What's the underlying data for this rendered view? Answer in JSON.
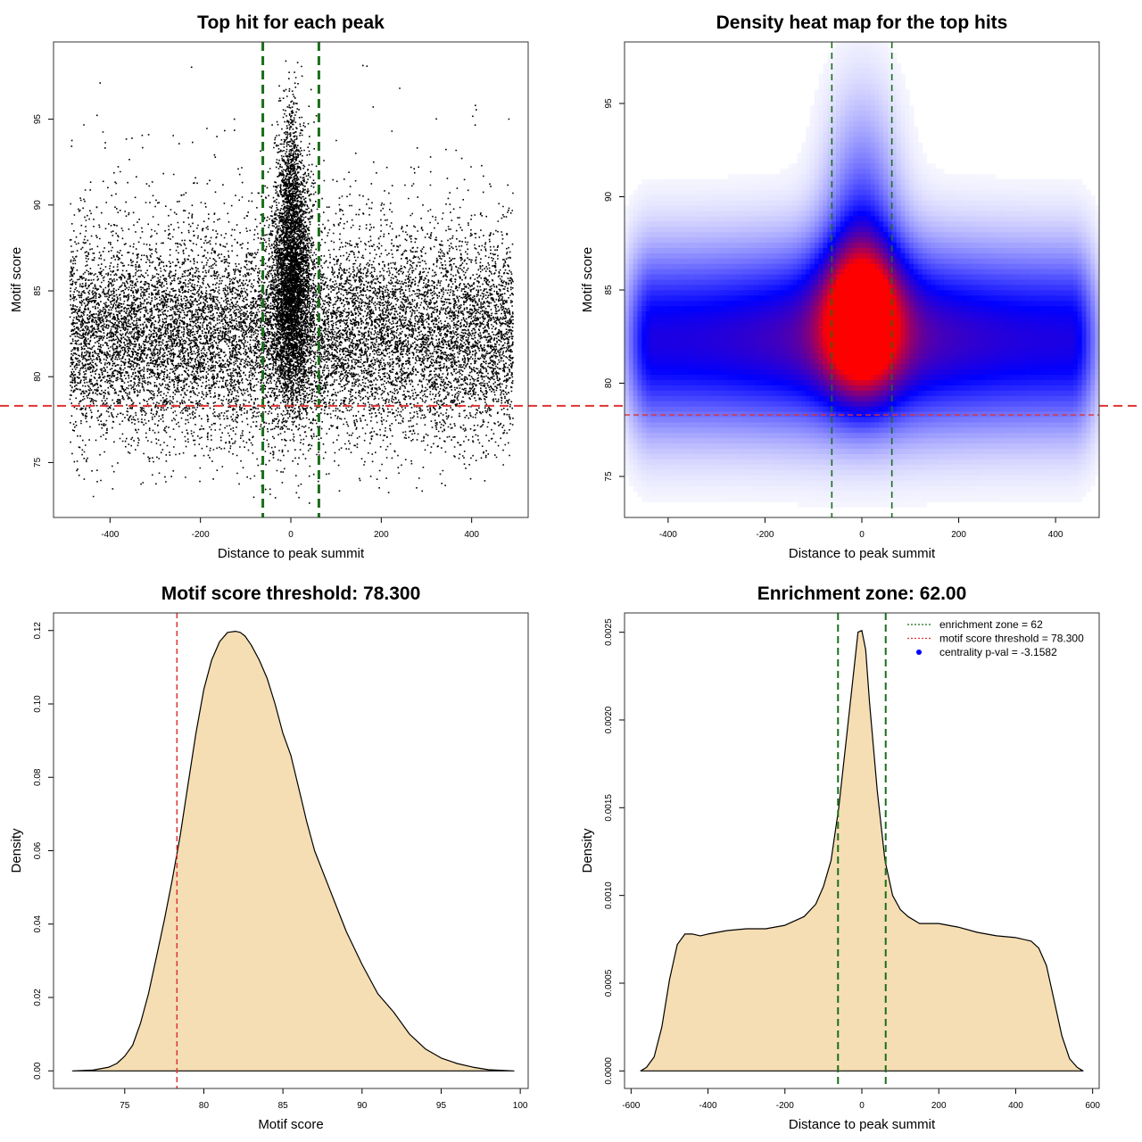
{
  "colors": {
    "zone_line": "#1a6e1a",
    "threshold_line": "#dd3333",
    "density_fill": "#f5deb3",
    "heat_low": "#ffffff",
    "heat_mid": "#0000ff",
    "heat_high": "#ff0000",
    "points": "#000000",
    "legend_dot": "#0000ff"
  },
  "chart_data": [
    {
      "type": "scatter",
      "title": "Top hit for each peak",
      "xlabel": "Distance to peak summit",
      "ylabel": "Motif score",
      "xlim": [
        -525,
        525
      ],
      "ylim": [
        71.8,
        99.5
      ],
      "xticks": [
        -400,
        -200,
        0,
        200,
        400
      ],
      "yticks": [
        75,
        80,
        85,
        90,
        95
      ],
      "x_range_of_points": [
        -490,
        490
      ],
      "points_note": "dense cloud centered at score ~82; column of high scores near x=0 reaching ~98",
      "vlines": [
        -62,
        62
      ],
      "hline": 78.3,
      "grid": false
    },
    {
      "type": "heatmap",
      "title": "Density heat map for the top hits",
      "xlabel": "Distance to peak summit",
      "ylabel": "Motif score",
      "xlim": [
        -490,
        490
      ],
      "ylim": [
        72.8,
        98.3
      ],
      "xticks": [
        -400,
        -200,
        0,
        200,
        400
      ],
      "yticks": [
        75,
        80,
        85,
        90,
        95
      ],
      "vlines": [
        -62,
        62
      ],
      "hline": 78.3,
      "color_scale": [
        "white",
        "blue",
        "red"
      ],
      "density_peak": {
        "x": 0,
        "y": 83.5
      },
      "grid": false
    },
    {
      "type": "area",
      "title": "Motif score threshold: 78.300",
      "xlabel": "Motif score",
      "ylabel": "Density",
      "xlim": [
        70.5,
        100.5
      ],
      "ylim": [
        -0.0048,
        0.1248
      ],
      "xticks": [
        75,
        80,
        85,
        90,
        95,
        100
      ],
      "yticks": [
        "0.00",
        "0.02",
        "0.04",
        "0.06",
        "0.08",
        "0.10",
        "0.12"
      ],
      "x": [
        71.7,
        73.0,
        74.0,
        74.5,
        75.0,
        75.5,
        76.0,
        76.5,
        77.0,
        77.5,
        78.0,
        78.5,
        79.0,
        79.5,
        80.0,
        80.5,
        81.0,
        81.5,
        82.0,
        82.3,
        82.6,
        83.0,
        83.5,
        84.0,
        84.5,
        85.0,
        85.5,
        86.0,
        86.5,
        87.0,
        88.0,
        89.0,
        90.0,
        91.0,
        92.0,
        93.0,
        94.0,
        95.0,
        96.0,
        97.0,
        98.0,
        99.6
      ],
      "y": [
        0.0,
        0.0002,
        0.001,
        0.002,
        0.004,
        0.007,
        0.013,
        0.021,
        0.031,
        0.041,
        0.052,
        0.064,
        0.078,
        0.092,
        0.104,
        0.112,
        0.117,
        0.1195,
        0.1198,
        0.1195,
        0.1185,
        0.116,
        0.112,
        0.107,
        0.1,
        0.092,
        0.086,
        0.077,
        0.068,
        0.06,
        0.049,
        0.038,
        0.029,
        0.021,
        0.016,
        0.01,
        0.006,
        0.0035,
        0.002,
        0.001,
        0.0003,
        0.0
      ],
      "vline": 78.3,
      "grid": false
    },
    {
      "type": "area",
      "title": "Enrichment zone: 62.00",
      "xlabel": "Distance to peak summit",
      "ylabel": "Density",
      "xlim": [
        -617,
        617
      ],
      "ylim": [
        -0.0001,
        0.00261
      ],
      "xticks": [
        -600,
        -400,
        -200,
        0,
        200,
        400,
        600
      ],
      "yticks": [
        "0.0000",
        "0.0005",
        "0.0010",
        "0.0015",
        "0.0020",
        "0.0025"
      ],
      "x": [
        -575,
        -560,
        -540,
        -520,
        -500,
        -480,
        -460,
        -440,
        -420,
        -400,
        -350,
        -300,
        -250,
        -200,
        -150,
        -120,
        -100,
        -80,
        -60,
        -40,
        -20,
        -10,
        0,
        10,
        20,
        40,
        60,
        80,
        100,
        120,
        150,
        200,
        250,
        300,
        350,
        400,
        440,
        460,
        480,
        500,
        520,
        540,
        560,
        575
      ],
      "y": [
        0.0,
        2e-05,
        8e-05,
        0.00025,
        0.00052,
        0.00072,
        0.00078,
        0.00078,
        0.00077,
        0.00078,
        0.0008,
        0.00081,
        0.00081,
        0.00083,
        0.00088,
        0.00095,
        0.00105,
        0.0012,
        0.0015,
        0.0019,
        0.0023,
        0.0025,
        0.00251,
        0.0024,
        0.0021,
        0.0016,
        0.0012,
        0.001,
        0.00092,
        0.00088,
        0.00084,
        0.00084,
        0.00082,
        0.00079,
        0.00077,
        0.00076,
        0.00074,
        0.0007,
        0.0006,
        0.0004,
        0.0002,
        7e-05,
        2e-05,
        0.0
      ],
      "vlines": [
        -62,
        62
      ],
      "legend": {
        "placement": "top-right",
        "entries": [
          "enrichment zone = 62",
          "motif score threshold = 78.300",
          "centrality p-val = -3.1582"
        ]
      },
      "grid": false
    }
  ]
}
